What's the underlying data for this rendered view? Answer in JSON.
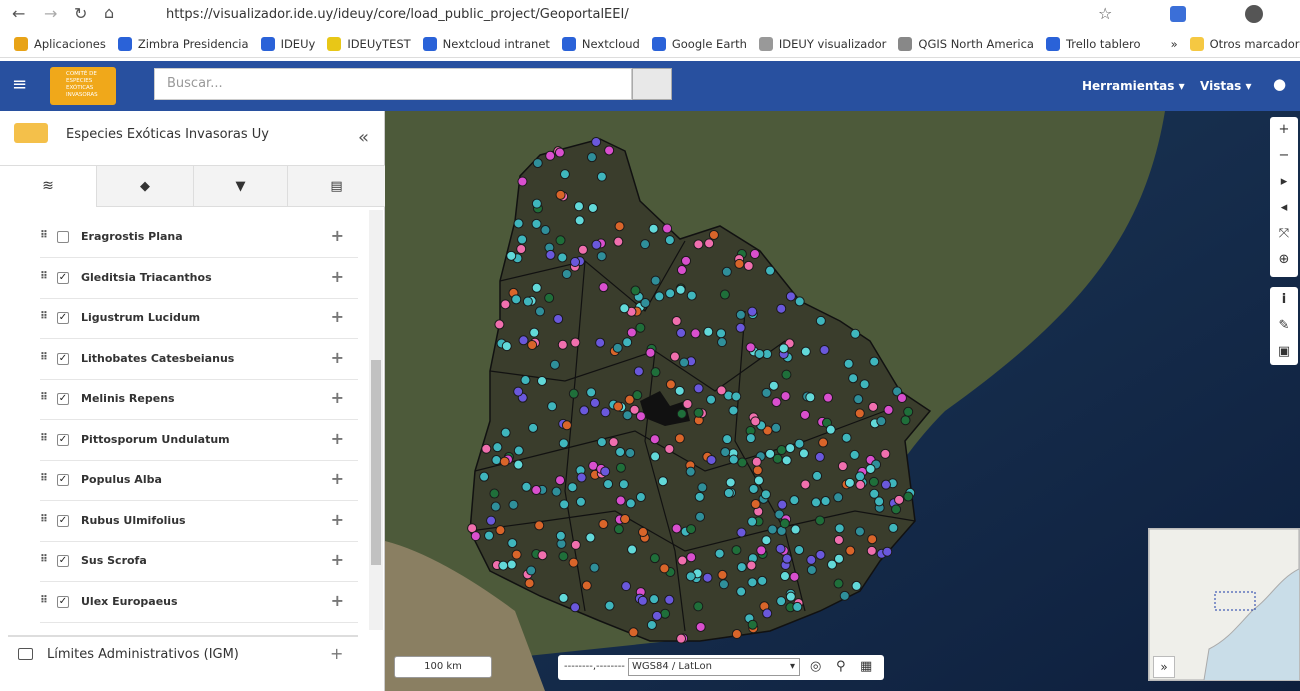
{
  "browser": {
    "url": "https://visualizador.ide.uy/ideuy/core/load_public_project/GeoportalEEI/",
    "bookmarks": [
      "Aplicaciones",
      "Zimbra Presidencia",
      "IDEUy",
      "IDEUyTEST",
      "Nextcloud intranet",
      "Nextcloud",
      "Google Earth",
      "IDEUY visualizador",
      "QGIS North America",
      "Trello tablero"
    ],
    "bookmarks_more": "»",
    "other_bookmarks": "Otros marcadores"
  },
  "header": {
    "logo_lines": [
      "COMITÉ DE",
      "ESPECIES",
      "EXÓTICAS",
      "INVASORAS"
    ],
    "search_placeholder": "Buscar...",
    "menus": [
      "Herramientas",
      "Vistas"
    ]
  },
  "sidebar": {
    "title": "Especies Exóticas Invasoras Uy",
    "layers": [
      {
        "name": "Eragrostis Plana",
        "checked": false
      },
      {
        "name": "Gleditsia Triacanthos",
        "checked": true
      },
      {
        "name": "Ligustrum Lucidum",
        "checked": true
      },
      {
        "name": "Lithobates Catesbeianus",
        "checked": true
      },
      {
        "name": "Melinis Repens",
        "checked": true
      },
      {
        "name": "Pittosporum Undulatum",
        "checked": true
      },
      {
        "name": "Populus Alba",
        "checked": true
      },
      {
        "name": "Rubus Ulmifolius",
        "checked": true
      },
      {
        "name": "Sus Scrofa",
        "checked": true
      },
      {
        "name": "Ulex Europaeus",
        "checked": true
      }
    ],
    "group": "Límites Administrativos (IGM)"
  },
  "map": {
    "scale": "100 km",
    "coordinates": "--------,--------",
    "projection": "WGS84 / LatLon",
    "minimap_toggle": "»"
  }
}
